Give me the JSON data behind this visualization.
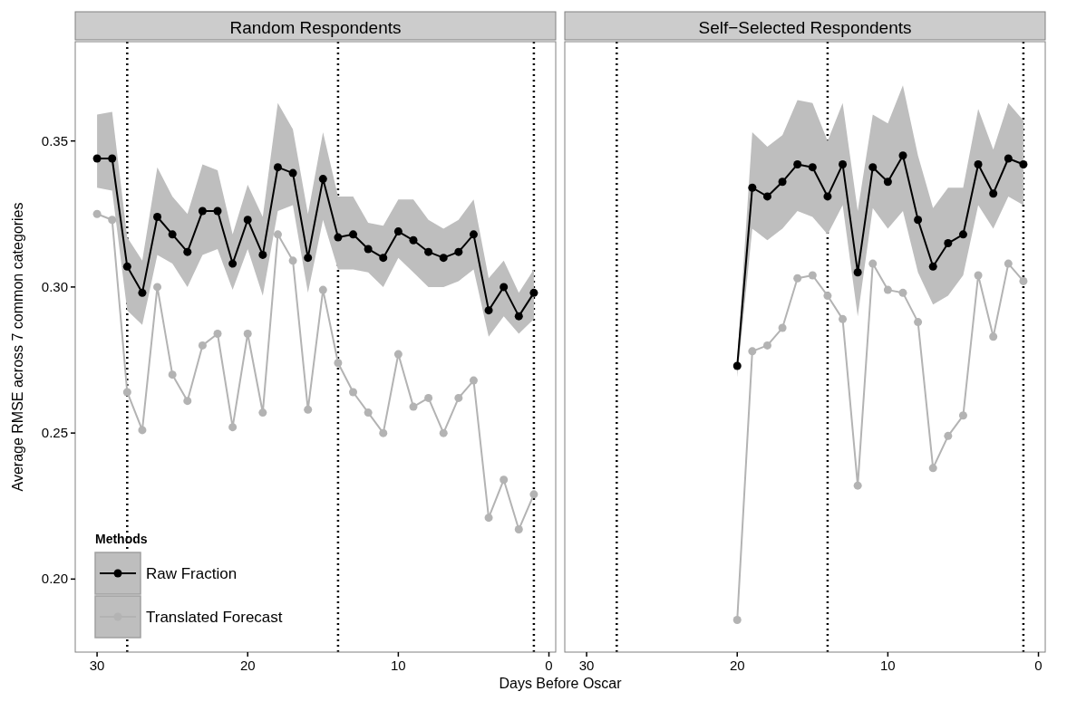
{
  "chart_data": [
    {
      "type": "line",
      "title": "Random Respondents",
      "xlabel": "Days Before Oscar",
      "ylabel": "Average RMSE across 7 common categories",
      "legend_title": "Methods",
      "legend": "bottom left",
      "marker": "circle",
      "line_style": "solid",
      "xlim": [
        31.45,
        -0.45
      ],
      "ylim": [
        0.175,
        0.384
      ],
      "xticks": [
        30,
        20,
        10,
        0
      ],
      "yticks": [
        {
          "value": 0.2,
          "label": "0.20"
        },
        0.25,
        {
          "value": 0.3,
          "label": "0.30"
        },
        0.35
      ],
      "x": [
        30,
        29,
        28,
        27,
        26,
        25,
        24,
        23,
        22,
        21,
        20,
        19,
        18,
        17,
        16,
        15,
        14,
        13,
        12,
        11,
        10,
        9,
        8,
        7,
        6,
        5,
        4,
        3,
        2,
        1
      ],
      "ref_lines": [
        {
          "axis": "x",
          "value": 28,
          "color": "#000000",
          "line_style": "dotted"
        },
        {
          "axis": "x",
          "value": 14,
          "color": "#000000",
          "line_style": "dotted"
        },
        {
          "axis": "x",
          "value": 1,
          "color": "#000000",
          "line_style": "dotted"
        }
      ],
      "series": [
        {
          "name": "Raw Fraction",
          "color": "#000000",
          "values": [
            0.344,
            0.344,
            0.307,
            0.298,
            0.324,
            0.318,
            0.312,
            0.326,
            0.326,
            0.308,
            0.323,
            0.311,
            0.341,
            0.339,
            0.31,
            0.337,
            0.317,
            0.318,
            0.313,
            0.31,
            0.319,
            0.316,
            0.312,
            0.31,
            0.312,
            0.318,
            0.292,
            0.3,
            0.29,
            0.298
          ],
          "lower": [
            0.334,
            0.333,
            0.292,
            0.287,
            0.311,
            0.308,
            0.3,
            0.311,
            0.313,
            0.299,
            0.313,
            0.297,
            0.326,
            0.328,
            0.298,
            0.323,
            0.306,
            0.306,
            0.305,
            0.3,
            0.31,
            0.305,
            0.3,
            0.3,
            0.302,
            0.306,
            0.283,
            0.29,
            0.284,
            0.289
          ],
          "upper": [
            0.359,
            0.36,
            0.317,
            0.309,
            0.341,
            0.331,
            0.325,
            0.342,
            0.34,
            0.318,
            0.335,
            0.324,
            0.363,
            0.354,
            0.325,
            0.353,
            0.331,
            0.331,
            0.322,
            0.321,
            0.33,
            0.33,
            0.323,
            0.32,
            0.323,
            0.33,
            0.303,
            0.309,
            0.298,
            0.306
          ]
        },
        {
          "name": "Translated Forecast",
          "color": "#b3b3b3",
          "values": [
            0.325,
            0.323,
            0.264,
            0.251,
            0.3,
            0.27,
            0.261,
            0.28,
            0.284,
            0.252,
            0.284,
            0.257,
            0.318,
            0.309,
            0.258,
            0.299,
            0.274,
            0.264,
            0.257,
            0.25,
            0.277,
            0.259,
            0.262,
            0.25,
            0.262,
            0.268,
            0.221,
            0.234,
            0.217,
            0.229
          ]
        }
      ]
    },
    {
      "type": "line",
      "title": "Self−Selected Respondents",
      "marker": "circle",
      "line_style": "solid",
      "tick_labels": "x",
      "xlim": [
        31.45,
        -0.45
      ],
      "ylim": [
        0.175,
        0.384
      ],
      "xticks": [
        30,
        20,
        10,
        0
      ],
      "x": [
        20,
        19,
        18,
        17,
        16,
        15,
        14,
        13,
        12,
        11,
        10,
        9,
        8,
        7,
        6,
        5,
        4,
        3,
        2,
        1
      ],
      "ref_lines": [
        {
          "axis": "x",
          "value": 28,
          "color": "#000000",
          "line_style": "dotted"
        },
        {
          "axis": "x",
          "value": 14,
          "color": "#000000",
          "line_style": "dotted"
        },
        {
          "axis": "x",
          "value": 1,
          "color": "#000000",
          "line_style": "dotted"
        }
      ],
      "series": [
        {
          "color": "#000000",
          "values": [
            0.273,
            0.334,
            0.331,
            0.336,
            0.342,
            0.341,
            0.331,
            0.342,
            0.305,
            0.341,
            0.336,
            0.345,
            0.323,
            0.307,
            0.315,
            0.318,
            0.342,
            0.332,
            0.344,
            0.342
          ],
          "lower": [
            0.269,
            0.32,
            0.316,
            0.32,
            0.326,
            0.324,
            0.318,
            0.328,
            0.29,
            0.327,
            0.32,
            0.326,
            0.305,
            0.294,
            0.297,
            0.304,
            0.328,
            0.32,
            0.331,
            0.328
          ],
          "upper": [
            0.275,
            0.353,
            0.348,
            0.352,
            0.364,
            0.363,
            0.35,
            0.363,
            0.326,
            0.359,
            0.356,
            0.369,
            0.345,
            0.327,
            0.334,
            0.334,
            0.361,
            0.347,
            0.363,
            0.357
          ]
        },
        {
          "color": "#b3b3b3",
          "values": [
            0.186,
            0.278,
            0.28,
            0.286,
            0.303,
            0.304,
            0.297,
            0.289,
            0.232,
            0.308,
            0.299,
            0.298,
            0.288,
            0.238,
            0.249,
            0.256,
            0.304,
            0.283,
            0.308,
            0.302
          ]
        }
      ]
    }
  ]
}
